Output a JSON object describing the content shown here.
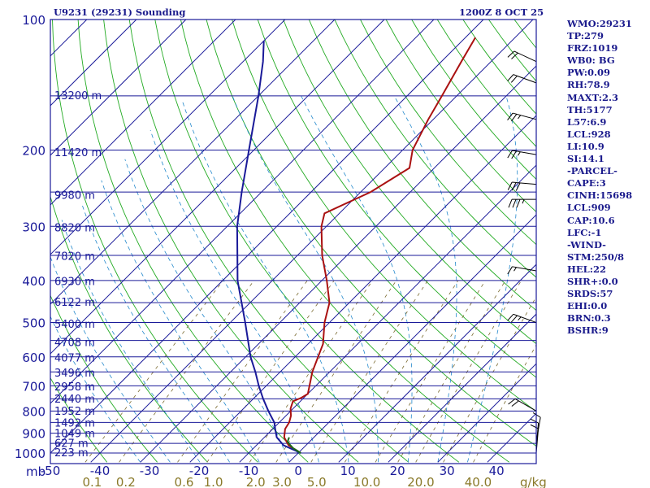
{
  "chart_data": {
    "type": "line",
    "title_left": "U9231 (29231) Sounding",
    "title_right": "1200Z  8 OCT 25",
    "pressure_axis_label": "mb",
    "pressure_ticks": [
      100,
      200,
      300,
      400,
      500,
      600,
      700,
      800,
      900,
      1000
    ],
    "temperature_ticks": [
      "-50",
      "-40",
      "-30",
      "-20",
      "-10",
      "0",
      "10",
      "20",
      "30",
      "40"
    ],
    "temperature_range_c": [
      -50,
      48
    ],
    "mixing_ratio_ticks": [
      "0.1",
      "0.2",
      "0.6",
      "1.0",
      "2.0",
      "3.0",
      "5.0",
      "10.0",
      "20.0",
      "40.0"
    ],
    "mixing_ratio_unit": "g/kg",
    "height_labels": [
      {
        "p": 1000,
        "label": "223 m"
      },
      {
        "p": 952,
        "label": "627 m"
      },
      {
        "p": 903,
        "label": "1049 m"
      },
      {
        "p": 855,
        "label": "1492 m"
      },
      {
        "p": 802,
        "label": "1952 m"
      },
      {
        "p": 752,
        "label": "2440 m"
      },
      {
        "p": 705,
        "label": "2958 m"
      },
      {
        "p": 655,
        "label": "3496 m"
      },
      {
        "p": 605,
        "label": "4077 m"
      },
      {
        "p": 557,
        "label": "4708 m"
      },
      {
        "p": 505,
        "label": "5400 m"
      },
      {
        "p": 450,
        "label": "6122 m"
      },
      {
        "p": 403,
        "label": "6930 m"
      },
      {
        "p": 352,
        "label": "7820 m"
      },
      {
        "p": 303,
        "label": "8820 m"
      },
      {
        "p": 255,
        "label": "9980 m"
      },
      {
        "p": 203,
        "label": "11420 m"
      },
      {
        "p": 150,
        "label": "13200 m"
      }
    ],
    "series": [
      {
        "name": "Temperature",
        "color": "#aa1111",
        "points": [
          {
            "p": 1000,
            "t": 0.5
          },
          {
            "p": 960,
            "t": -3.5
          },
          {
            "p": 920,
            "t": -6.0
          },
          {
            "p": 880,
            "t": -7.5
          },
          {
            "p": 850,
            "t": -8.0
          },
          {
            "p": 820,
            "t": -9.0
          },
          {
            "p": 790,
            "t": -10.5
          },
          {
            "p": 760,
            "t": -11.5
          },
          {
            "p": 745,
            "t": -10.5
          },
          {
            "p": 730,
            "t": -10.0
          },
          {
            "p": 650,
            "t": -13.5
          },
          {
            "p": 560,
            "t": -17.0
          },
          {
            "p": 500,
            "t": -21.0
          },
          {
            "p": 450,
            "t": -24.0
          },
          {
            "p": 400,
            "t": -29.0
          },
          {
            "p": 350,
            "t": -35.0
          },
          {
            "p": 300,
            "t": -41.0
          },
          {
            "p": 280,
            "t": -43.0
          },
          {
            "p": 250,
            "t": -38.0
          },
          {
            "p": 220,
            "t": -35.0
          },
          {
            "p": 200,
            "t": -38.0
          },
          {
            "p": 170,
            "t": -41.0
          },
          {
            "p": 150,
            "t": -43.0
          },
          {
            "p": 125,
            "t": -46.0
          },
          {
            "p": 110,
            "t": -48.0
          }
        ]
      },
      {
        "name": "Dewpoint",
        "color": "#1a1a99",
        "points": [
          {
            "p": 1000,
            "t": 0.5
          },
          {
            "p": 960,
            "t": -4.5
          },
          {
            "p": 920,
            "t": -7.5
          },
          {
            "p": 880,
            "t": -9.5
          },
          {
            "p": 850,
            "t": -11.0
          },
          {
            "p": 800,
            "t": -14.5
          },
          {
            "p": 750,
            "t": -18.0
          },
          {
            "p": 700,
            "t": -21.5
          },
          {
            "p": 650,
            "t": -25.0
          },
          {
            "p": 600,
            "t": -29.0
          },
          {
            "p": 500,
            "t": -37.0
          },
          {
            "p": 400,
            "t": -47.0
          },
          {
            "p": 300,
            "t": -58.0
          },
          {
            "p": 250,
            "t": -64.0
          },
          {
            "p": 200,
            "t": -71.0
          },
          {
            "p": 150,
            "t": -80.0
          },
          {
            "p": 125,
            "t": -86.0
          },
          {
            "p": 112,
            "t": -90.0
          }
        ]
      },
      {
        "name": "Wet-bulb",
        "color": "#1a6a1a",
        "points": [
          {
            "p": 1000,
            "t": 0.5
          },
          {
            "p": 975,
            "t": -2.0
          },
          {
            "p": 955,
            "t": -3.5
          },
          {
            "p": 940,
            "t": -4.5
          },
          {
            "p": 920,
            "t": -5.0
          }
        ]
      }
    ],
    "wind_barbs": [
      {
        "p": 1000,
        "dir_deg": 5,
        "speed_kt": 10
      },
      {
        "p": 970,
        "dir_deg": 5,
        "speed_kt": 10
      },
      {
        "p": 940,
        "dir_deg": 10,
        "speed_kt": 10
      },
      {
        "p": 800,
        "dir_deg": 300,
        "speed_kt": 20
      },
      {
        "p": 500,
        "dir_deg": 290,
        "speed_kt": 25
      },
      {
        "p": 380,
        "dir_deg": 280,
        "speed_kt": 15
      },
      {
        "p": 260,
        "dir_deg": 270,
        "speed_kt": 35
      },
      {
        "p": 240,
        "dir_deg": 275,
        "speed_kt": 30
      },
      {
        "p": 205,
        "dir_deg": 280,
        "speed_kt": 25
      },
      {
        "p": 170,
        "dir_deg": 285,
        "speed_kt": 25
      },
      {
        "p": 140,
        "dir_deg": 290,
        "speed_kt": 20
      },
      {
        "p": 125,
        "dir_deg": 295,
        "speed_kt": 20
      }
    ],
    "colors": {
      "axes": "#1a1a99",
      "isobar": "#1a1a99",
      "isotherm": "#1a1a99",
      "dry_adiabat": "#22aa22",
      "moist_adiabat": "#2288cc",
      "mixing_ratio": "#7a6a30",
      "tick_mixing": "#8a7a2a",
      "barb": "#000000"
    }
  },
  "indices": [
    "WMO:29231",
    "TP:279",
    "FRZ:1019",
    "WB0: BG",
    "PW:0.09",
    "RH:78.9",
    "MAXT:2.3",
    "TH:5177",
    "L57:6.9",
    "LCL:928",
    "LI:10.9",
    "SI:14.1",
    "-PARCEL-",
    "CAPE:3",
    "CINH:15698",
    "LCL:909",
    "CAP:10.6",
    "LFC:-1",
    "-WIND-",
    "STM:250/8",
    "HEL:22",
    "SHR+:0.0",
    "SRDS:57",
    "EHI:0.0",
    "BRN:0.3",
    "BSHR:9"
  ]
}
